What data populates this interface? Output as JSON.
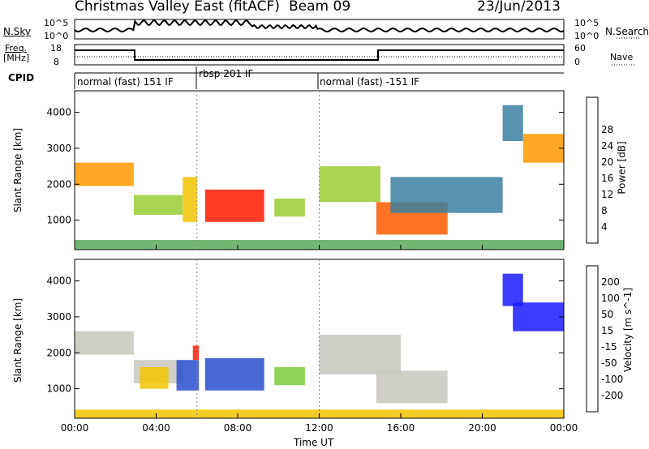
{
  "header": {
    "title": "Christmas Valley East (fitACF)",
    "beam": "Beam 09",
    "date": "23/Jun/2013"
  },
  "strip_labels": {
    "nsky": "N.Sky",
    "nsearch": "N.Search",
    "freq": "Freq.",
    "freq_unit": "[MHz]",
    "nave": "Nave",
    "cpid": "CPID",
    "nsky_top": "10^5",
    "nsky_bottom": "10^0",
    "nsearch_top": "10^5",
    "nsearch_bottom": "10^0",
    "freq_top": "18",
    "freq_bottom": "8",
    "nave_top": "60",
    "nave_bottom": "0"
  },
  "cpid_segments": [
    {
      "label": "normal (fast) 151 IF",
      "start_h": 0,
      "end_h": 6
    },
    {
      "label": "rbsp 201 IF",
      "start_h": 6,
      "end_h": 12
    },
    {
      "label": "normal (fast) -151 IF",
      "start_h": 12,
      "end_h": 24
    }
  ],
  "xaxis": {
    "label": "Time UT",
    "ticks": [
      "00:00",
      "04:00",
      "08:00",
      "12:00",
      "16:00",
      "20:00",
      "00:00"
    ]
  },
  "chart_data": [
    {
      "type": "heatmap",
      "title": "Power",
      "ylabel": "Slant Range [km]",
      "yticks": [
        "1000",
        "2000",
        "3000",
        "4000"
      ],
      "ylim": [
        180,
        4600
      ],
      "xlim_hours": [
        0,
        24
      ],
      "colorbar": {
        "label": "Power [dB]",
        "ticks": [
          "4",
          "8",
          "12",
          "16",
          "20",
          "24",
          "28"
        ],
        "colors": [
          "#1a1aff",
          "#2a4fd0",
          "#3a7fa0",
          "#5aa85a",
          "#9acd32",
          "#f2c400",
          "#ff9900",
          "#ff5a00",
          "#ff1a00"
        ]
      },
      "regions": [
        {
          "t0": 0.0,
          "t1": 2.9,
          "r0": 1950,
          "r1": 2600,
          "level": 6
        },
        {
          "t0": 2.9,
          "t1": 5.3,
          "r0": 1150,
          "r1": 1700,
          "level": 4
        },
        {
          "t0": 5.3,
          "t1": 6.0,
          "r0": 950,
          "r1": 2200,
          "level": 5
        },
        {
          "t0": 6.4,
          "t1": 9.3,
          "r0": 950,
          "r1": 1850,
          "level": 8
        },
        {
          "t0": 9.8,
          "t1": 11.3,
          "r0": 1100,
          "r1": 1600,
          "level": 4
        },
        {
          "t0": 12.0,
          "t1": 15.0,
          "r0": 1500,
          "r1": 2500,
          "level": 4
        },
        {
          "t0": 14.8,
          "t1": 18.3,
          "r0": 600,
          "r1": 1500,
          "level": 7
        },
        {
          "t0": 15.5,
          "t1": 21.0,
          "r0": 1200,
          "r1": 2200,
          "level": 2
        },
        {
          "t0": 22.0,
          "t1": 24.0,
          "r0": 2600,
          "r1": 3400,
          "level": 6
        },
        {
          "t0": 21.0,
          "t1": 22.0,
          "r0": 3200,
          "r1": 4200,
          "level": 2
        },
        {
          "t0": 0.0,
          "t1": 24.0,
          "r0": 180,
          "r1": 450,
          "level": 3
        }
      ]
    },
    {
      "type": "heatmap",
      "title": "Velocity",
      "ylabel": "Slant Range [km]",
      "yticks": [
        "1000",
        "2000",
        "3000",
        "4000"
      ],
      "ylim": [
        180,
        4600
      ],
      "xlim_hours": [
        0,
        24
      ],
      "colorbar": {
        "label": "Velocity [m s^-1]",
        "ticks": [
          "200",
          "100",
          "50",
          "15",
          "-15",
          "-50",
          "-100",
          "-200"
        ],
        "colors": [
          "#1a1aff",
          "#2a4fd0",
          "#2e8b57",
          "#7ccd3c",
          "#c8c8c0",
          "#f2c400",
          "#ff9900",
          "#ff5a00",
          "#ff1a00"
        ]
      },
      "regions": [
        {
          "t0": 0.0,
          "t1": 2.9,
          "r0": 1950,
          "r1": 2600,
          "level": 4
        },
        {
          "t0": 2.9,
          "t1": 5.3,
          "r0": 1150,
          "r1": 1800,
          "level": 4
        },
        {
          "t0": 3.2,
          "t1": 4.6,
          "r0": 1000,
          "r1": 1600,
          "level": 5
        },
        {
          "t0": 5.0,
          "t1": 6.1,
          "r0": 950,
          "r1": 1800,
          "level": 1
        },
        {
          "t0": 5.8,
          "t1": 6.1,
          "r0": 1800,
          "r1": 2200,
          "level": 8
        },
        {
          "t0": 6.4,
          "t1": 9.3,
          "r0": 950,
          "r1": 1850,
          "level": 1
        },
        {
          "t0": 9.8,
          "t1": 11.3,
          "r0": 1100,
          "r1": 1600,
          "level": 3
        },
        {
          "t0": 12.0,
          "t1": 16.0,
          "r0": 1400,
          "r1": 2500,
          "level": 4
        },
        {
          "t0": 14.8,
          "t1": 18.3,
          "r0": 600,
          "r1": 1500,
          "level": 4
        },
        {
          "t0": 21.5,
          "t1": 24.0,
          "r0": 2600,
          "r1": 3400,
          "level": 0
        },
        {
          "t0": 21.0,
          "t1": 22.0,
          "r0": 3300,
          "r1": 4200,
          "level": 0
        },
        {
          "t0": 0.0,
          "t1": 24.0,
          "r0": 180,
          "r1": 420,
          "level": 5
        }
      ]
    }
  ]
}
